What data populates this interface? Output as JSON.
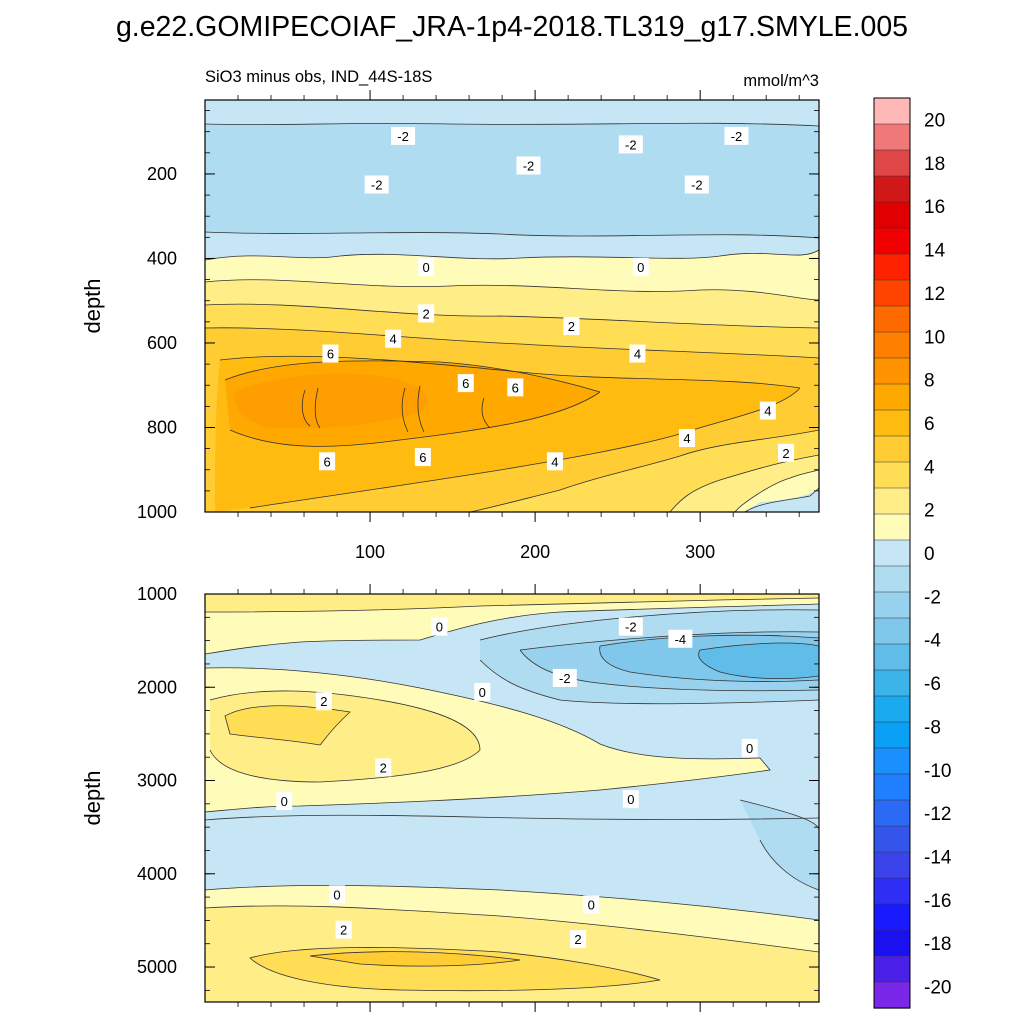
{
  "figure_title": "g.e22.GOMIPECOIAF_JRA-1p4-2018.TL319_g17.SMYLE.005",
  "chart_data": {
    "type": "heatmap",
    "subtitle_left": "SiO3 minus obs, IND_44S-18S",
    "units": "mmol/m^3",
    "x_range": [
      0,
      372
    ],
    "x_ticks": [
      100,
      200,
      300
    ],
    "colorbar": {
      "levels": [
        -20,
        -18,
        -16,
        -14,
        -12,
        -10,
        -8,
        -6,
        -4,
        -2,
        0,
        2,
        4,
        6,
        8,
        10,
        12,
        14,
        16,
        18,
        20
      ],
      "tick_labels": [
        "20",
        "18",
        "16",
        "14",
        "12",
        "10",
        "8",
        "6",
        "4",
        "2",
        "0",
        "-2",
        "-4",
        "-6",
        "-8",
        "-10",
        "-12",
        "-14",
        "-16",
        "-18",
        "-20"
      ],
      "colors_top_to_bottom": [
        "#ffb8b8",
        "#f07878",
        "#e04848",
        "#d01818",
        "#e00000",
        "#f00000",
        "#ff2200",
        "#ff4400",
        "#ff6a00",
        "#ff7f00",
        "#ff9400",
        "#ffa800",
        "#ffbb10",
        "#ffcc33",
        "#ffdd55",
        "#ffee88",
        "#fffbb8",
        "#c6e6f5",
        "#b0dcf2",
        "#98d2ef",
        "#7fc8ec",
        "#60bdea",
        "#3cb4ea",
        "#1aaaf0",
        "#0aa0f5",
        "#1a90ff",
        "#1f7fff",
        "#2a6af5",
        "#3355ea",
        "#3a44ea",
        "#2e2ef5",
        "#1a1aff",
        "#1a10f0",
        "#4a20e8",
        "#7a28e8"
      ]
    },
    "panels": [
      {
        "name": "upper",
        "ylabel": "depth",
        "y_range": [
          25,
          1000
        ],
        "y_ticks": [
          200,
          400,
          600,
          800,
          1000
        ],
        "contour_labels": [
          {
            "text": "-2",
            "x": 120,
            "y": 110
          },
          {
            "text": "-2",
            "x": 258,
            "y": 130
          },
          {
            "text": "-2",
            "x": 322,
            "y": 110
          },
          {
            "text": "-2",
            "x": 196,
            "y": 180
          },
          {
            "text": "-2",
            "x": 104,
            "y": 225
          },
          {
            "text": "-2",
            "x": 298,
            "y": 225
          },
          {
            "text": "0",
            "x": 134,
            "y": 420
          },
          {
            "text": "0",
            "x": 264,
            "y": 420
          },
          {
            "text": "2",
            "x": 134,
            "y": 530
          },
          {
            "text": "2",
            "x": 222,
            "y": 560
          },
          {
            "text": "4",
            "x": 114,
            "y": 590
          },
          {
            "text": "4",
            "x": 262,
            "y": 625
          },
          {
            "text": "6",
            "x": 76,
            "y": 625
          },
          {
            "text": "6",
            "x": 158,
            "y": 695
          },
          {
            "text": "6",
            "x": 188,
            "y": 705
          },
          {
            "text": "4",
            "x": 341,
            "y": 760
          },
          {
            "text": "4",
            "x": 292,
            "y": 825
          },
          {
            "text": "6",
            "x": 132,
            "y": 870
          },
          {
            "text": "6",
            "x": 74,
            "y": 880
          },
          {
            "text": "4",
            "x": 212,
            "y": 880
          },
          {
            "text": "2",
            "x": 352,
            "y": 860
          }
        ]
      },
      {
        "name": "lower",
        "ylabel": "depth",
        "y_range": [
          1000,
          5375
        ],
        "y_ticks": [
          1000,
          2000,
          3000,
          4000,
          5000
        ],
        "contour_labels": [
          {
            "text": "0",
            "x": 142,
            "y": 1350
          },
          {
            "text": "-2",
            "x": 258,
            "y": 1350
          },
          {
            "text": "-4",
            "x": 288,
            "y": 1480
          },
          {
            "text": "-2",
            "x": 218,
            "y": 1900
          },
          {
            "text": "0",
            "x": 168,
            "y": 2050
          },
          {
            "text": "2",
            "x": 72,
            "y": 2150
          },
          {
            "text": "0",
            "x": 330,
            "y": 2650
          },
          {
            "text": "2",
            "x": 108,
            "y": 2860
          },
          {
            "text": "0",
            "x": 48,
            "y": 3220
          },
          {
            "text": "0",
            "x": 258,
            "y": 3200
          },
          {
            "text": "0",
            "x": 80,
            "y": 4220
          },
          {
            "text": "0",
            "x": 234,
            "y": 4330
          },
          {
            "text": "2",
            "x": 84,
            "y": 4600
          },
          {
            "text": "2",
            "x": 226,
            "y": 4700
          }
        ]
      }
    ]
  }
}
